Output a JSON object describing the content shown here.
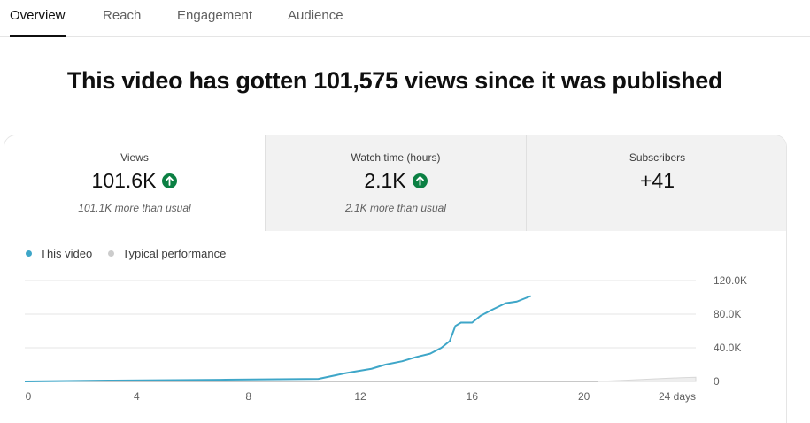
{
  "tabs": [
    {
      "label": "Overview",
      "active": true
    },
    {
      "label": "Reach",
      "active": false
    },
    {
      "label": "Engagement",
      "active": false
    },
    {
      "label": "Audience",
      "active": false
    }
  ],
  "headline": "This video has gotten 101,575 views since it was published",
  "metrics": [
    {
      "label": "Views",
      "value": "101.6K",
      "trend": "up",
      "note": "101.1K more than usual"
    },
    {
      "label": "Watch time (hours)",
      "value": "2.1K",
      "trend": "up",
      "note": "2.1K more than usual"
    },
    {
      "label": "Subscribers",
      "value": "+41",
      "trend": "",
      "note": ""
    }
  ],
  "colors": {
    "accent": "#3ea6c8",
    "typical": "#cccccc",
    "trend_up": "#0b8043"
  },
  "chart_data": {
    "type": "line",
    "legend": [
      "This video",
      "Typical performance"
    ],
    "x_tick_labels": [
      "0",
      "4",
      "8",
      "12",
      "16",
      "20",
      "24 days"
    ],
    "x_ticks": [
      0,
      4,
      8,
      12,
      16,
      20,
      24
    ],
    "y_tick_labels": [
      "0",
      "40.0K",
      "80.0K",
      "120.0K"
    ],
    "y_ticks": [
      0,
      40000,
      80000,
      120000
    ],
    "xlim": [
      0,
      24
    ],
    "ylim": [
      0,
      120000
    ],
    "grid": true,
    "series": [
      {
        "name": "This video",
        "x": [
          0,
          3,
          7,
          10.5,
          11.5,
          12.4,
          12.9,
          13.5,
          14,
          14.5,
          14.9,
          15.2,
          15.4,
          15.6,
          16,
          16.3,
          16.7,
          17.2,
          17.6,
          18.1
        ],
        "y": [
          0,
          1000,
          2000,
          3000,
          10000,
          15000,
          20000,
          24000,
          29000,
          33000,
          40000,
          48000,
          66000,
          70000,
          70000,
          78000,
          85000,
          93000,
          95000,
          101575
        ]
      },
      {
        "name": "Typical performance",
        "x": [
          20.5,
          21.5,
          22.5,
          23.5,
          24
        ],
        "y": [
          0,
          1500,
          3000,
          4500,
          5000
        ]
      }
    ]
  }
}
